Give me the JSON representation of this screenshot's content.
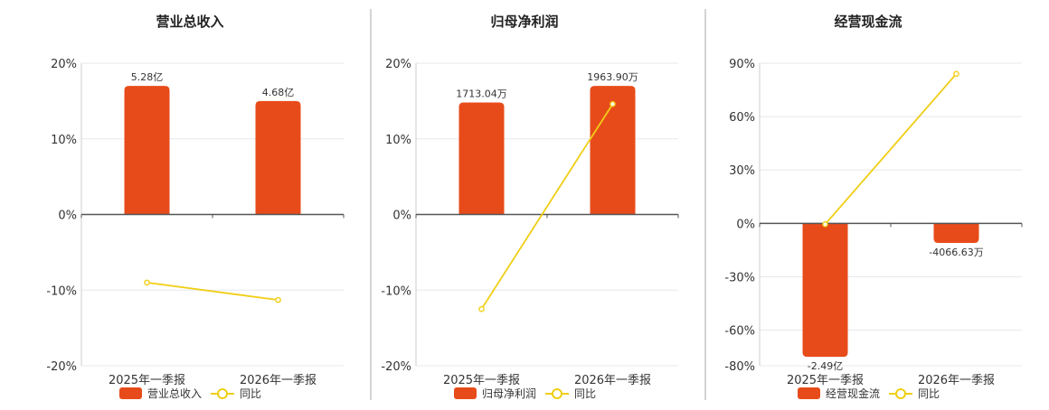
{
  "colors": {
    "bar": "#E84B1A",
    "line": "#F0CE14",
    "grid": "#E6E8EE",
    "axis": "#555555",
    "divider": "#AAAAAA"
  },
  "chart_data": [
    {
      "type": "bar",
      "title": "营业总收入",
      "categories": [
        "2025年一季报",
        "2026年一季报"
      ],
      "series": [
        {
          "name": "营业总收入",
          "type": "bar",
          "values": [
            17,
            15
          ],
          "labels": [
            "5.28亿",
            "4.68亿"
          ]
        },
        {
          "name": "同比",
          "type": "line",
          "values": [
            -9,
            -11.3
          ]
        }
      ],
      "yticks": [
        "20%",
        "10%",
        "0%",
        "-10%",
        "-20%"
      ],
      "ylim": [
        -20,
        20
      ],
      "legend": "bottom"
    },
    {
      "type": "bar",
      "title": "归母净利润",
      "categories": [
        "2025年一季报",
        "2026年一季报"
      ],
      "series": [
        {
          "name": "归母净利润",
          "type": "bar",
          "values": [
            14.8,
            17
          ],
          "labels": [
            "1713.04万",
            "1963.90万"
          ]
        },
        {
          "name": "同比",
          "type": "line",
          "values": [
            -12.5,
            14.6
          ]
        }
      ],
      "yticks": [
        "20%",
        "10%",
        "0%",
        "-10%",
        "-20%"
      ],
      "ylim": [
        -20,
        20
      ],
      "legend": "bottom"
    },
    {
      "type": "bar",
      "title": "经营现金流",
      "categories": [
        "2025年一季报",
        "2026年一季报"
      ],
      "series": [
        {
          "name": "经营现金流",
          "type": "bar",
          "values": [
            -75,
            -11
          ],
          "labels": [
            "-2.49亿",
            "-4066.63万"
          ]
        },
        {
          "name": "同比",
          "type": "line",
          "values": [
            -0.5,
            84
          ]
        }
      ],
      "yticks": [
        "90%",
        "60%",
        "30%",
        "0%",
        "-30%",
        "-60%",
        "-80%"
      ],
      "ylim": [
        -80,
        90
      ],
      "legend": "bottom"
    }
  ]
}
